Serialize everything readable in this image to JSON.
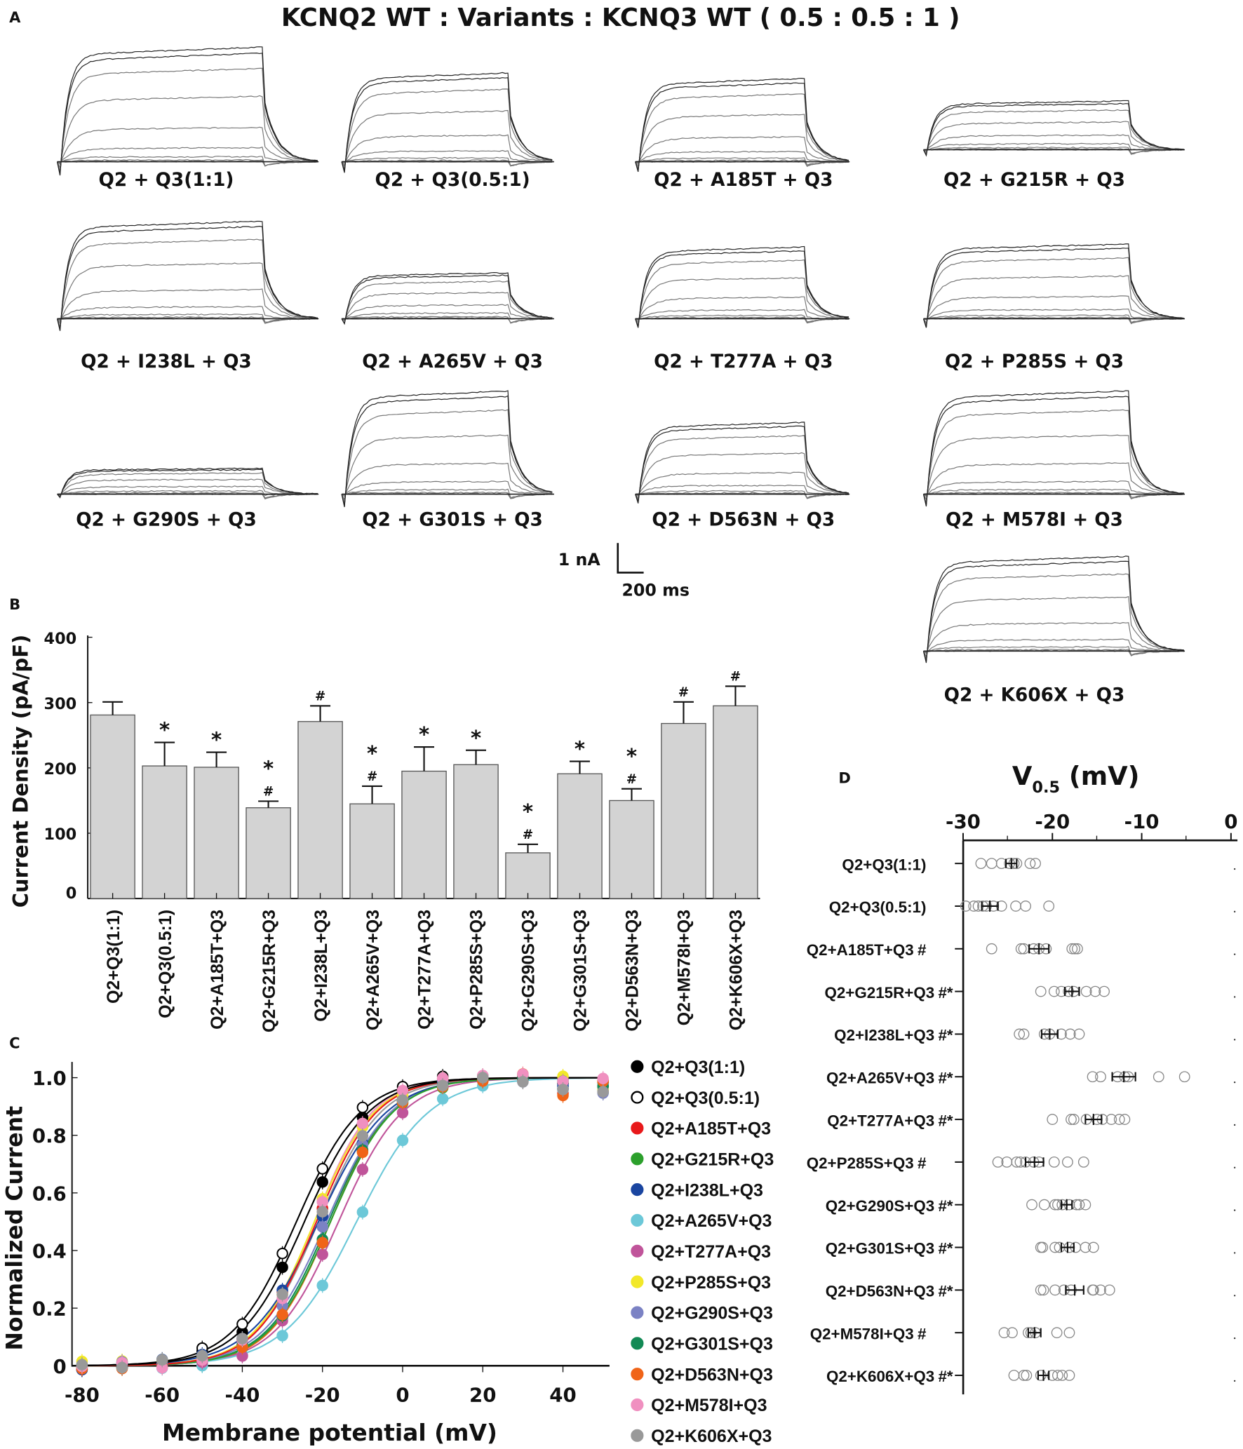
{
  "figure_title": "KCNQ2 WT : Variants : KCNQ3 WT ( 0.5 : 0.5 : 1 )",
  "panel_letters": {
    "a": "A",
    "b": "B",
    "c": "C",
    "d": "D"
  },
  "scale_bar": {
    "current": "1 nA",
    "time": "200 ms"
  },
  "panel_a": [
    {
      "label": "Q2 + Q3(1:1)",
      "peak_nA": 4.0
    },
    {
      "label": "Q2 + Q3(0.5:1)",
      "peak_nA": 3.1
    },
    {
      "label": "Q2 + A185T  + Q3",
      "peak_nA": 2.9
    },
    {
      "label": "Q2 + G215R  + Q3",
      "peak_nA": 1.7
    },
    {
      "label": "Q2 + I238L + Q3",
      "peak_nA": 3.4
    },
    {
      "label": "Q2 + A265V + Q3",
      "peak_nA": 1.6
    },
    {
      "label": "Q2 + T277A + Q3",
      "peak_nA": 2.5
    },
    {
      "label": "Q2 + P285S + Q3",
      "peak_nA": 2.6
    },
    {
      "label": "Q2 + G290S + Q3",
      "peak_nA": 0.9
    },
    {
      "label": "Q2 + G301S + Q3",
      "peak_nA": 3.6
    },
    {
      "label": "Q2 + D563N + Q3",
      "peak_nA": 2.5
    },
    {
      "label": "Q2 + M578I + Q3",
      "peak_nA": 3.6
    },
    {
      "label": "Q2 + K606X + Q3",
      "peak_nA": 3.3
    }
  ],
  "chart_data": [
    {
      "type": "bar",
      "panel": "B",
      "ylabel": "Current Density (pA/pF)",
      "xlabel": "",
      "ylim": [
        0,
        400
      ],
      "yticks": [
        "0",
        "100",
        "200",
        "300",
        "400"
      ],
      "categories": [
        "Q2+Q3(1:1)",
        "Q2+Q3(0.5:1)",
        "Q2+A185T+Q3",
        "Q2+G215R+Q3",
        "Q2+I238L+Q3",
        "Q2+A265V+Q3",
        "Q2+T277A+Q3",
        "Q2+P285S+Q3",
        "Q2+G290S+Q3",
        "Q2+G301S+Q3",
        "Q2+D563N+Q3",
        "Q2+M578I+Q3",
        "Q2+K606X+Q3"
      ],
      "values": [
        281,
        203,
        201,
        139,
        271,
        145,
        195,
        205,
        70,
        191,
        150,
        268,
        295
      ],
      "errors": [
        20,
        36,
        23,
        10,
        24,
        27,
        37,
        22,
        13,
        19,
        18,
        33,
        30
      ],
      "annotations": [
        "",
        "*",
        "*",
        "*#",
        "#",
        "*#",
        "*",
        "*",
        "*#",
        "*",
        "*#",
        "#",
        "#"
      ],
      "bar_color": "#d3d3d3"
    },
    {
      "type": "line",
      "panel": "C",
      "xlabel": "Membrane potential (mV)",
      "ylabel": "Normalized Current",
      "xlim": [
        -80,
        50
      ],
      "ylim": [
        0,
        1.0
      ],
      "xticks": [
        "-80",
        "-60",
        "-40",
        "-20",
        "0",
        "20",
        "40"
      ],
      "yticks": [
        "0",
        "0.2",
        "0.4",
        "0.6",
        "0.8",
        "1.0"
      ],
      "x": [
        -80,
        -70,
        -60,
        -50,
        -40,
        -30,
        -20,
        -10,
        0,
        10,
        20,
        30,
        40,
        50
      ],
      "legend_position": "right",
      "series": [
        {
          "name": "Q2+Q3(1:1)",
          "color": "#000000",
          "filled": true,
          "v_half": -24.5,
          "slope": 8.0
        },
        {
          "name": "Q2+Q3(0.5:1)",
          "color": "#000000",
          "filled": false,
          "v_half": -26.5,
          "slope": 8.0
        },
        {
          "name": "Q2+A185T+Q3",
          "color": "#e8191b",
          "filled": true,
          "v_half": -21.5,
          "slope": 7.5
        },
        {
          "name": "Q2+G215R+Q3",
          "color": "#2ca02c",
          "filled": true,
          "v_half": -18.0,
          "slope": 7.8
        },
        {
          "name": "Q2+I238L+Q3",
          "color": "#1a45a0",
          "filled": true,
          "v_half": -21.0,
          "slope": 8.5
        },
        {
          "name": "Q2+A265V+Q3",
          "color": "#6cc8d8",
          "filled": true,
          "v_half": -11.5,
          "slope": 9.0
        },
        {
          "name": "Q2+T277A+Q3",
          "color": "#c0549a",
          "filled": true,
          "v_half": -16.0,
          "slope": 8.0
        },
        {
          "name": "Q2+P285S+Q3",
          "color": "#f2e829",
          "filled": true,
          "v_half": -22.0,
          "slope": 7.5
        },
        {
          "name": "Q2+G290S+Q3",
          "color": "#7b82c4",
          "filled": true,
          "v_half": -19.0,
          "slope": 8.0
        },
        {
          "name": "Q2+G301S+Q3",
          "color": "#138a55",
          "filled": true,
          "v_half": -18.5,
          "slope": 7.8
        },
        {
          "name": "Q2+D563N+Q3",
          "color": "#f06418",
          "filled": true,
          "v_half": -18.0,
          "slope": 7.6
        },
        {
          "name": "Q2+M578I+Q3",
          "color": "#f090c0",
          "filled": true,
          "v_half": -22.0,
          "slope": 7.2
        },
        {
          "name": "Q2+K606X+Q3",
          "color": "#999999",
          "filled": true,
          "v_half": -21.0,
          "slope": 7.8
        }
      ]
    },
    {
      "type": "scatter",
      "panel": "D",
      "title": "V",
      "title_sub": "0.5",
      "title_unit": " (mV)",
      "xlim": [
        -30,
        0
      ],
      "xticks": [
        "-30",
        "-20",
        "-10",
        "0"
      ],
      "series": [
        {
          "name": "Q2+Q3(1:1)",
          "mark": "",
          "mean": -24.6,
          "sem": 0.6,
          "points": [
            -28,
            -26.8,
            -25.7,
            -24.8,
            -24.3,
            -24,
            -22.5,
            -21.9
          ]
        },
        {
          "name": "Q2+Q3(0.5:1)",
          "mark": "",
          "mean": -27,
          "sem": 0.9,
          "points": [
            -29.7,
            -28.8,
            -28.3,
            -27.8,
            -27.4,
            -26.6,
            -25.7,
            -24.1,
            -23,
            -20.4
          ]
        },
        {
          "name": "Q2+A185T+Q3",
          "mark": "#",
          "mean": -21.5,
          "sem": 1.1,
          "points": [
            -26.8,
            -23.5,
            -23.2,
            -22.1,
            -21.5,
            -20.7,
            -17.8,
            -17.5,
            -17.2
          ]
        },
        {
          "name": "Q2+G215R+Q3",
          "mark": "#*",
          "mean": -17.8,
          "sem": 0.8,
          "points": [
            -21.3,
            -19.8,
            -19,
            -18.2,
            -17.6,
            -16.2,
            -15.2,
            -14.2
          ]
        },
        {
          "name": "Q2+I238L+Q3",
          "mark": "#*",
          "mean": -20.3,
          "sem": 0.9,
          "points": [
            -23.7,
            -23.2,
            -20.9,
            -20.3,
            -19,
            -18,
            -17
          ]
        },
        {
          "name": "Q2+A265V+Q3",
          "mark": "#*",
          "mean": -12,
          "sem": 1.3,
          "points": [
            -15.5,
            -14.6,
            -12.7,
            -11.9,
            -11.5,
            -8.1,
            -5.2
          ]
        },
        {
          "name": "Q2+T277A+Q3",
          "mark": "#*",
          "mean": -15.4,
          "sem": 0.9,
          "points": [
            -20,
            -17.9,
            -17.6,
            -16.2,
            -15,
            -14.4,
            -13.4,
            -12.5,
            -11.9
          ]
        },
        {
          "name": "Q2+P285S+Q3",
          "mark": "#",
          "mean": -22,
          "sem": 1.0,
          "points": [
            -26.1,
            -25.1,
            -24,
            -23.6,
            -23,
            -22.1,
            -21.5,
            -19.8,
            -18.3,
            -16.5
          ]
        },
        {
          "name": "Q2+G290S+Q3",
          "mark": "#*",
          "mean": -18.4,
          "sem": 0.6,
          "points": [
            -22.3,
            -20.9,
            -19.7,
            -19.4,
            -18.9,
            -18.1,
            -17.3,
            -17,
            -16.3
          ]
        },
        {
          "name": "Q2+G301S+Q3",
          "mark": "#*",
          "mean": -18.3,
          "sem": 0.7,
          "points": [
            -21.3,
            -21.1,
            -19.7,
            -19.2,
            -18.1,
            -17.4,
            -16.3,
            -15.4
          ]
        },
        {
          "name": "Q2+D563N+Q3",
          "mark": "#*",
          "mean": -17.5,
          "sem": 1.0,
          "points": [
            -21.3,
            -21,
            -19.7,
            -18.7,
            -17.9,
            -15.5,
            -15.4,
            -14.6,
            -13.6
          ]
        },
        {
          "name": "Q2+M578I+Q3",
          "mark": "#",
          "mean": -22,
          "sem": 0.7,
          "points": [
            -25.4,
            -24.5,
            -22.7,
            -22.4,
            -21.9,
            -19.5,
            -18.1
          ]
        },
        {
          "name": "Q2+K606X+Q3",
          "mark": "#*",
          "mean": -21,
          "sem": 0.6,
          "points": [
            -24.3,
            -23.2,
            -22.9,
            -21.3,
            -20,
            -19.4,
            -18.9,
            -18.1
          ]
        }
      ]
    }
  ]
}
